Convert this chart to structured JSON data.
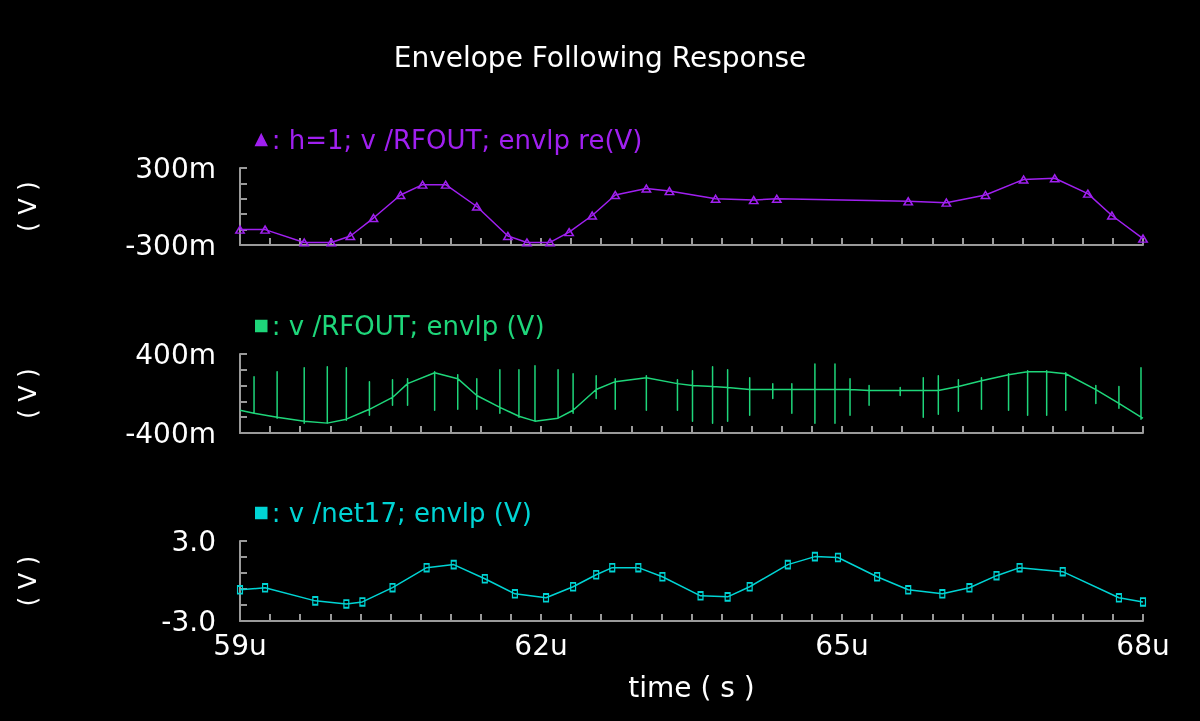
{
  "chart_data": [
    {
      "type": "line",
      "title": "Envelope Following Response",
      "ylabel": "( V )",
      "legend": "top left",
      "marker": "triangle",
      "grid": false,
      "tick_labels": "y",
      "xlim": [
        59,
        68
      ],
      "xticks": [
        {
          "value": 59,
          "label": null
        },
        {
          "value": 59.3,
          "label": null
        },
        {
          "value": 59.6,
          "label": null
        },
        {
          "value": 59.9,
          "label": null
        },
        {
          "value": 60.2,
          "label": null
        },
        {
          "value": 60.5,
          "label": null
        },
        {
          "value": 60.8,
          "label": null
        },
        {
          "value": 61.1,
          "label": null
        },
        {
          "value": 61.4,
          "label": null
        },
        {
          "value": 61.7,
          "label": null
        },
        {
          "value": 62,
          "label": null
        },
        {
          "value": 62.3,
          "label": null
        },
        {
          "value": 62.6,
          "label": null
        },
        {
          "value": 62.9,
          "label": null
        },
        {
          "value": 63.2,
          "label": null
        },
        {
          "value": 63.5,
          "label": null
        },
        {
          "value": 63.8,
          "label": null
        },
        {
          "value": 64.1,
          "label": null
        },
        {
          "value": 64.4,
          "label": null
        },
        {
          "value": 64.7,
          "label": null
        },
        {
          "value": 65,
          "label": null
        },
        {
          "value": 65.3,
          "label": null
        },
        {
          "value": 65.6,
          "label": null
        },
        {
          "value": 65.9,
          "label": null
        },
        {
          "value": 66.2,
          "label": null
        },
        {
          "value": 66.5,
          "label": null
        },
        {
          "value": 66.8,
          "label": null
        },
        {
          "value": 67.1,
          "label": null
        },
        {
          "value": 67.4,
          "label": null
        },
        {
          "value": 67.7,
          "label": null
        },
        {
          "value": 68,
          "label": null
        }
      ],
      "ylim": [
        -300,
        300
      ],
      "yticks": [
        {
          "value": -300,
          "label": "-300m"
        },
        {
          "value": -180,
          "label": null
        },
        {
          "value": -60,
          "label": null
        },
        {
          "value": 60,
          "label": null
        },
        {
          "value": 180,
          "label": null
        },
        {
          "value": 300,
          "label": "300m"
        }
      ],
      "series": [
        {
          "name": ": h=1; v /RFOUT; envlp re(V)",
          "color": "#a020f0",
          "x": [
            59,
            59.25,
            59.64,
            59.91,
            60.1,
            60.33,
            60.6,
            60.82,
            61.05,
            61.36,
            61.67,
            61.86,
            62.09,
            62.28,
            62.51,
            62.74,
            63.05,
            63.28,
            63.74,
            64.12,
            64.35,
            65.66,
            66.04,
            66.43,
            66.81,
            67.12,
            67.45,
            67.69,
            68
          ],
          "values": [
            -180,
            -180,
            -280,
            -280,
            -230,
            -90,
            90,
            170,
            170,
            0,
            -230,
            -280,
            -280,
            -200,
            -70,
            90,
            140,
            120,
            60,
            50,
            60,
            40,
            30,
            90,
            210,
            220,
            100,
            -70,
            -250
          ]
        }
      ]
    },
    {
      "type": "line",
      "ylabel": "( V )",
      "legend": "top left",
      "grid": false,
      "tick_labels": "y",
      "xlim": [
        59,
        68
      ],
      "xticks": [
        {
          "value": 59,
          "label": null
        },
        {
          "value": 59.3,
          "label": null
        },
        {
          "value": 59.6,
          "label": null
        },
        {
          "value": 59.9,
          "label": null
        },
        {
          "value": 60.2,
          "label": null
        },
        {
          "value": 60.5,
          "label": null
        },
        {
          "value": 60.8,
          "label": null
        },
        {
          "value": 61.1,
          "label": null
        },
        {
          "value": 61.4,
          "label": null
        },
        {
          "value": 61.7,
          "label": null
        },
        {
          "value": 62,
          "label": null
        },
        {
          "value": 62.3,
          "label": null
        },
        {
          "value": 62.6,
          "label": null
        },
        {
          "value": 62.9,
          "label": null
        },
        {
          "value": 63.2,
          "label": null
        },
        {
          "value": 63.5,
          "label": null
        },
        {
          "value": 63.8,
          "label": null
        },
        {
          "value": 64.1,
          "label": null
        },
        {
          "value": 64.4,
          "label": null
        },
        {
          "value": 64.7,
          "label": null
        },
        {
          "value": 65,
          "label": null
        },
        {
          "value": 65.3,
          "label": null
        },
        {
          "value": 65.6,
          "label": null
        },
        {
          "value": 65.9,
          "label": null
        },
        {
          "value": 66.2,
          "label": null
        },
        {
          "value": 66.5,
          "label": null
        },
        {
          "value": 66.8,
          "label": null
        },
        {
          "value": 67.1,
          "label": null
        },
        {
          "value": 67.4,
          "label": null
        },
        {
          "value": 67.7,
          "label": null
        },
        {
          "value": 68,
          "label": null
        }
      ],
      "ylim": [
        -400,
        400
      ],
      "yticks": [
        {
          "value": -400,
          "label": "-400m"
        },
        {
          "value": -240,
          "label": null
        },
        {
          "value": -80,
          "label": null
        },
        {
          "value": 80,
          "label": null
        },
        {
          "value": 240,
          "label": null
        },
        {
          "value": 400,
          "label": "400m"
        }
      ],
      "series": [
        {
          "name": ": v /RFOUT; envlp (V)",
          "color": "#1ed67a",
          "x": [
            59,
            59.14,
            59.14,
            59.14,
            59.14,
            59.37,
            59.37,
            59.37,
            59.37,
            59.64,
            59.64,
            59.64,
            59.64,
            59.87,
            59.87,
            59.87,
            59.87,
            60.06,
            60.06,
            60.06,
            60.06,
            60.29,
            60.29,
            60.29,
            60.29,
            60.52,
            60.52,
            60.52,
            60.52,
            60.67,
            60.67,
            60.67,
            60.67,
            60.94,
            60.94,
            60.94,
            60.94,
            61.17,
            61.17,
            61.17,
            61.17,
            61.36,
            61.36,
            61.36,
            61.36,
            61.59,
            61.59,
            61.59,
            61.59,
            61.78,
            61.78,
            61.78,
            61.78,
            61.94,
            61.94,
            61.94,
            61.94,
            62.17,
            62.17,
            62.17,
            62.17,
            62.32,
            62.32,
            62.32,
            62.32,
            62.55,
            62.55,
            62.55,
            62.55,
            62.74,
            62.74,
            62.74,
            62.74,
            63.05,
            63.05,
            63.05,
            63.05,
            63.36,
            63.36,
            63.36,
            63.36,
            63.51,
            63.51,
            63.51,
            63.51,
            63.71,
            63.71,
            63.71,
            63.71,
            63.86,
            63.86,
            63.86,
            63.86,
            64.08,
            64.08,
            64.08,
            64.08,
            64.31,
            64.31,
            64.31,
            64.31,
            64.5,
            64.5,
            64.5,
            64.5,
            64.73,
            64.73,
            64.73,
            64.73,
            64.93,
            64.93,
            64.93,
            64.93,
            65.08,
            65.08,
            65.08,
            65.08,
            65.27,
            65.27,
            65.27,
            65.27,
            65.58,
            65.58,
            65.58,
            65.58,
            65.81,
            65.81,
            65.81,
            65.81,
            65.96,
            65.96,
            65.96,
            65.96,
            66.16,
            66.16,
            66.16,
            66.16,
            66.39,
            66.39,
            66.39,
            66.39,
            66.66,
            66.66,
            66.66,
            66.66,
            66.85,
            66.85,
            66.85,
            66.85,
            67.04,
            67.04,
            67.04,
            67.04,
            67.23,
            67.23,
            67.23,
            67.23,
            67.53,
            67.53,
            67.53,
            67.53,
            67.76,
            67.76,
            67.76,
            67.76,
            67.98,
            67.98,
            67.98,
            67.98,
            68
          ],
          "values": [
            -170,
            -200,
            170,
            -190,
            -200,
            -240,
            220,
            -250,
            -240,
            -280,
            260,
            -300,
            -280,
            -300,
            270,
            -300,
            -300,
            -260,
            260,
            -270,
            -260,
            -160,
            120,
            -220,
            -160,
            -40,
            140,
            -120,
            -40,
            100,
            150,
            -120,
            100,
            210,
            220,
            -170,
            210,
            150,
            190,
            -160,
            150,
            -20,
            150,
            -160,
            -20,
            -140,
            240,
            -200,
            -140,
            -230,
            240,
            -240,
            -230,
            -280,
            280,
            -280,
            -280,
            -250,
            240,
            -250,
            -250,
            -170,
            200,
            -200,
            -170,
            40,
            180,
            -50,
            40,
            120,
            150,
            -160,
            120,
            160,
            180,
            -170,
            160,
            100,
            140,
            -170,
            100,
            80,
            230,
            -280,
            80,
            70,
            270,
            -300,
            70,
            60,
            240,
            -280,
            60,
            40,
            160,
            -220,
            40,
            40,
            100,
            -50,
            40,
            40,
            100,
            -200,
            40,
            40,
            300,
            -300,
            40,
            40,
            300,
            -300,
            40,
            40,
            150,
            -220,
            40,
            30,
            80,
            -120,
            30,
            30,
            60,
            -20,
            30,
            30,
            160,
            -240,
            30,
            30,
            180,
            -210,
            30,
            70,
            140,
            -180,
            70,
            130,
            160,
            -160,
            130,
            190,
            200,
            -170,
            190,
            220,
            230,
            -220,
            220,
            220,
            230,
            -220,
            220,
            200,
            210,
            -170,
            200,
            40,
            80,
            -100,
            40,
            -100,
            70,
            -150,
            -100,
            -240,
            260,
            -260,
            -240,
            -250
          ]
        }
      ]
    },
    {
      "type": "line",
      "ylabel": "( V )",
      "xlabel": "time ( s )",
      "legend": "top left",
      "marker": "square",
      "grid": false,
      "xlim": [
        59,
        68
      ],
      "xticks": [
        {
          "value": 59,
          "label": "59u"
        },
        {
          "value": 59.3,
          "label": null
        },
        {
          "value": 59.6,
          "label": null
        },
        {
          "value": 59.9,
          "label": null
        },
        {
          "value": 60.2,
          "label": null
        },
        {
          "value": 60.5,
          "label": null
        },
        {
          "value": 60.8,
          "label": null
        },
        {
          "value": 61.1,
          "label": null
        },
        {
          "value": 61.4,
          "label": null
        },
        {
          "value": 61.7,
          "label": null
        },
        {
          "value": 62,
          "label": "62u"
        },
        {
          "value": 62.3,
          "label": null
        },
        {
          "value": 62.6,
          "label": null
        },
        {
          "value": 62.9,
          "label": null
        },
        {
          "value": 63.2,
          "label": null
        },
        {
          "value": 63.5,
          "label": null
        },
        {
          "value": 63.8,
          "label": null
        },
        {
          "value": 64.1,
          "label": null
        },
        {
          "value": 64.4,
          "label": null
        },
        {
          "value": 64.7,
          "label": null
        },
        {
          "value": 65,
          "label": "65u"
        },
        {
          "value": 65.3,
          "label": null
        },
        {
          "value": 65.6,
          "label": null
        },
        {
          "value": 65.9,
          "label": null
        },
        {
          "value": 66.2,
          "label": null
        },
        {
          "value": 66.5,
          "label": null
        },
        {
          "value": 66.8,
          "label": null
        },
        {
          "value": 67.1,
          "label": null
        },
        {
          "value": 67.4,
          "label": null
        },
        {
          "value": 67.7,
          "label": null
        },
        {
          "value": 68,
          "label": "68u"
        }
      ],
      "ylim": [
        -3.0,
        3.0
      ],
      "yticks": [
        {
          "value": -3.0,
          "label": "-3.0"
        },
        {
          "value": -1.8,
          "label": null
        },
        {
          "value": -0.6,
          "label": null
        },
        {
          "value": 0.6,
          "label": null
        },
        {
          "value": 1.8,
          "label": null
        },
        {
          "value": 3.0,
          "label": "3.0"
        }
      ],
      "series": [
        {
          "name": ": v /net17; envlp (V)",
          "color": "#00d4d4",
          "x": [
            59,
            59.25,
            59.75,
            60.06,
            60.22,
            60.52,
            60.86,
            61.13,
            61.44,
            61.74,
            62.05,
            62.32,
            62.55,
            62.71,
            62.97,
            63.21,
            63.59,
            63.86,
            64.08,
            64.46,
            64.73,
            64.96,
            65.35,
            65.66,
            66,
            66.27,
            66.54,
            66.77,
            67.2,
            67.76,
            68
          ],
          "values": [
            -0.66,
            -0.51,
            -1.49,
            -1.72,
            -1.57,
            -0.5,
            1.0,
            1.23,
            0.17,
            -0.96,
            -1.26,
            -0.43,
            0.47,
            1.0,
            1.0,
            0.32,
            -1.11,
            -1.19,
            -0.43,
            1.23,
            1.83,
            1.76,
            0.32,
            -0.66,
            -0.96,
            -0.51,
            0.4,
            1.0,
            0.7,
            -1.26,
            -1.57
          ]
        }
      ]
    }
  ]
}
